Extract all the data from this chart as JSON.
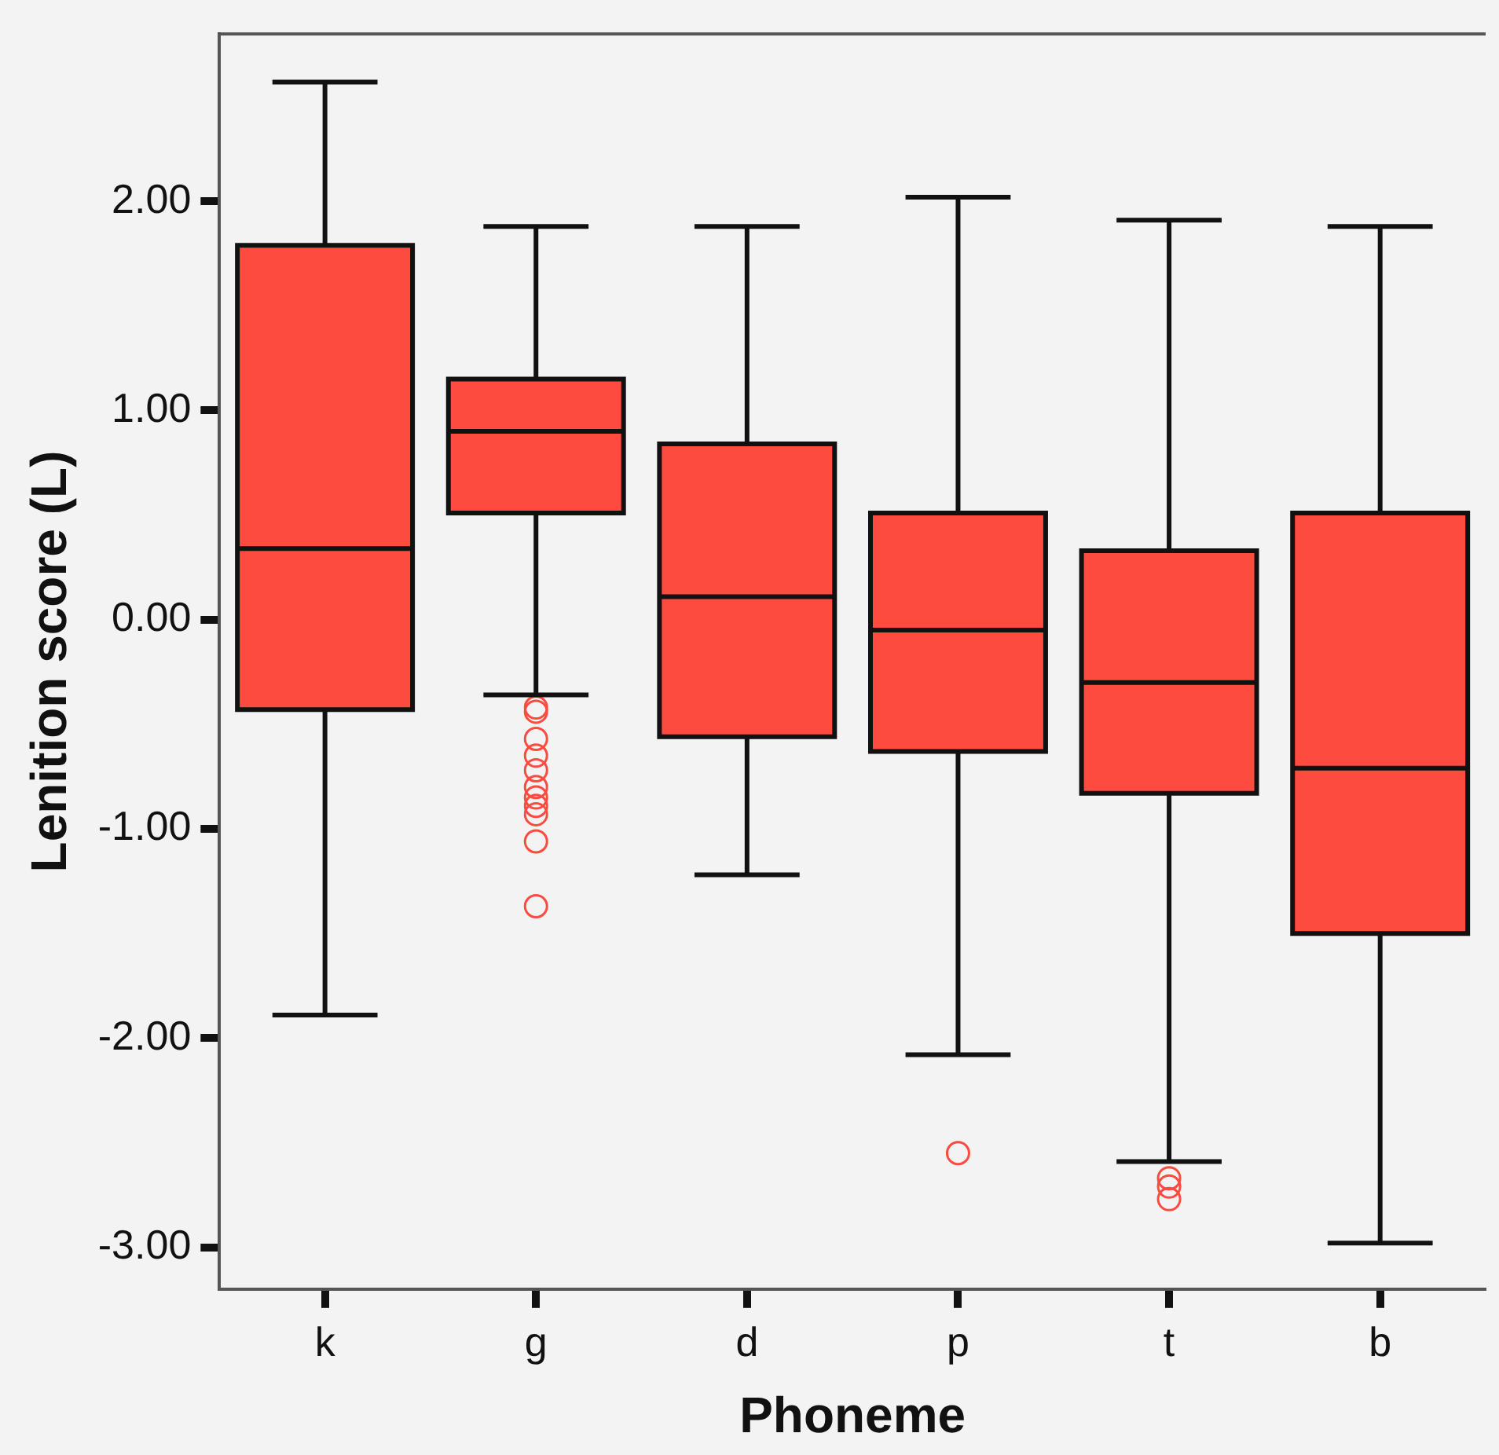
{
  "chart_data": {
    "type": "box",
    "xlabel": "Phoneme",
    "ylabel": "Lenition score (L)",
    "categories": [
      "k",
      "g",
      "d",
      "p",
      "t",
      "b"
    ],
    "color": "#fe4b3f",
    "boxes": [
      {
        "low": -1.89,
        "q1": -0.43,
        "median": 0.34,
        "q3": 1.79,
        "high": 2.57
      },
      {
        "low": -0.36,
        "q1": 0.51,
        "median": 0.9,
        "q3": 1.15,
        "high": 1.88,
        "outliers": [
          -0.42,
          -0.44,
          -0.57,
          -0.65,
          -0.72,
          -0.8,
          -0.85,
          -0.89,
          -0.93,
          -1.06,
          -1.37
        ]
      },
      {
        "low": -1.22,
        "q1": -0.56,
        "median": 0.11,
        "q3": 0.84,
        "high": 1.88
      },
      {
        "low": -2.08,
        "q1": -0.63,
        "median": -0.05,
        "q3": 0.51,
        "high": 2.02,
        "outliers": [
          -2.55
        ]
      },
      {
        "low": -2.59,
        "q1": -0.83,
        "median": -0.3,
        "q3": 0.33,
        "high": 1.91,
        "outliers": [
          -2.67,
          -2.71,
          -2.77
        ]
      },
      {
        "low": -2.98,
        "q1": -1.5,
        "median": -0.71,
        "q3": 0.51,
        "high": 1.88
      }
    ],
    "ylim": [
      -3.2,
      2.8
    ],
    "yticks": [
      {
        "value": -3,
        "label": "-3.00"
      },
      {
        "value": -2,
        "label": "-2.00"
      },
      {
        "value": -1,
        "label": "-1.00"
      },
      {
        "value": 0,
        "label": "0.00"
      },
      {
        "value": 1,
        "label": "1.00"
      },
      {
        "value": 2,
        "label": "2.00"
      }
    ],
    "grid": false,
    "legend": false
  }
}
